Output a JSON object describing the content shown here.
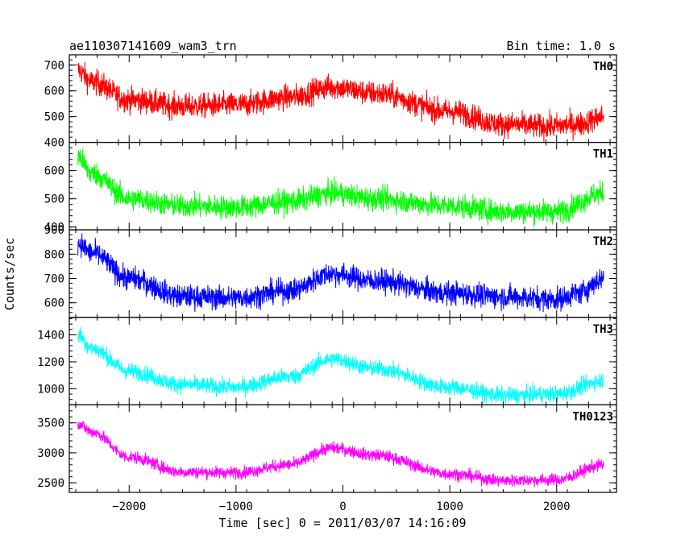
{
  "header": {
    "title": "ae110307141609_wam3_trn",
    "bin_time": "Bin time: 1.0 s"
  },
  "chart_data": {
    "type": "line",
    "xlabel": "Time [sec] 0 = 2011/03/07 14:16:09",
    "ylabel": "Counts/sec",
    "xlim": [
      -2560,
      2560
    ],
    "x_ticks": [
      -2000,
      -1000,
      0,
      1000,
      2000
    ],
    "x_range_data": [
      -2480,
      2440
    ],
    "panels": [
      {
        "name": "TH0",
        "color": "#ff0000",
        "ylim": [
          400,
          740
        ],
        "yticks": [
          400,
          500,
          600,
          700
        ],
        "trend": [
          [
            -2480,
            680
          ],
          [
            -2350,
            635
          ],
          [
            -2000,
            565
          ],
          [
            -1500,
            540
          ],
          [
            -1000,
            545
          ],
          [
            -500,
            575
          ],
          [
            -100,
            615
          ],
          [
            300,
            590
          ],
          [
            1000,
            520
          ],
          [
            1500,
            470
          ],
          [
            1900,
            462
          ],
          [
            2200,
            470
          ],
          [
            2440,
            500
          ]
        ],
        "noise": 35
      },
      {
        "name": "TH1",
        "color": "#00ff00",
        "ylim": [
          390,
          700
        ],
        "yticks": [
          400,
          500,
          600
        ],
        "trend": [
          [
            -2480,
            650
          ],
          [
            -2350,
            590
          ],
          [
            -2000,
            500
          ],
          [
            -1500,
            475
          ],
          [
            -1000,
            470
          ],
          [
            -500,
            490
          ],
          [
            -100,
            520
          ],
          [
            300,
            500
          ],
          [
            1000,
            475
          ],
          [
            1500,
            455
          ],
          [
            2000,
            455
          ],
          [
            2440,
            520
          ]
        ],
        "noise": 30
      },
      {
        "name": "TH2",
        "color": "#0000ff",
        "ylim": [
          540,
          900
        ],
        "yticks": [
          600,
          700,
          800,
          900
        ],
        "trend": [
          [
            -2480,
            845
          ],
          [
            -2350,
            805
          ],
          [
            -2000,
            700
          ],
          [
            -1500,
            625
          ],
          [
            -1000,
            620
          ],
          [
            -500,
            650
          ],
          [
            -100,
            720
          ],
          [
            300,
            690
          ],
          [
            1000,
            640
          ],
          [
            1500,
            625
          ],
          [
            2000,
            615
          ],
          [
            2200,
            640
          ],
          [
            2440,
            700
          ]
        ],
        "noise": 35
      },
      {
        "name": "TH3",
        "color": "#00ffff",
        "ylim": [
          880,
          1530
        ],
        "yticks": [
          1000,
          1200,
          1400
        ],
        "trend": [
          [
            -2480,
            1400
          ],
          [
            -2350,
            1300
          ],
          [
            -2000,
            1130
          ],
          [
            -1500,
            1030
          ],
          [
            -1000,
            1010
          ],
          [
            -500,
            1090
          ],
          [
            -100,
            1220
          ],
          [
            300,
            1150
          ],
          [
            1000,
            1010
          ],
          [
            1500,
            950
          ],
          [
            2000,
            960
          ],
          [
            2440,
            1060
          ]
        ],
        "noise": 45
      },
      {
        "name": "TH0123",
        "color": "#ff00ff",
        "ylim": [
          2340,
          3800
        ],
        "yticks": [
          2500,
          3000,
          3500
        ],
        "trend": [
          [
            -2480,
            3490
          ],
          [
            -2350,
            3350
          ],
          [
            -2000,
            2930
          ],
          [
            -1500,
            2680
          ],
          [
            -1000,
            2670
          ],
          [
            -500,
            2800
          ],
          [
            -100,
            3080
          ],
          [
            300,
            2960
          ],
          [
            1000,
            2650
          ],
          [
            1500,
            2540
          ],
          [
            2000,
            2550
          ],
          [
            2440,
            2800
          ]
        ],
        "noise": 75
      }
    ]
  }
}
